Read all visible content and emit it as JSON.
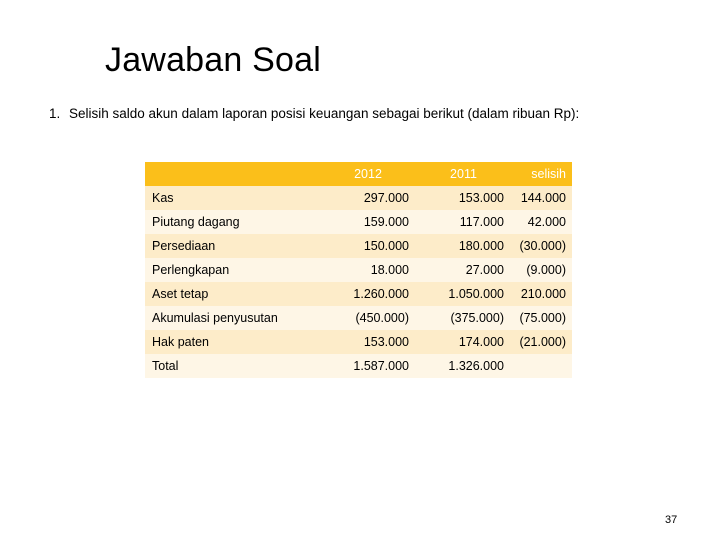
{
  "slide": {
    "title": "Jawaban Soal",
    "intro_number": "1.",
    "intro_text": "Selisih saldo akun dalam laporan posisi keuangan sebagai berikut (dalam ribuan Rp):",
    "page_number": "37"
  },
  "table": {
    "headers": {
      "account": "",
      "y2012": "2012",
      "y2011": "2011",
      "selisih": "selisih"
    },
    "rows": [
      {
        "account": "Kas",
        "y2012": "297.000",
        "y2011": "153.000",
        "selisih": "144.000"
      },
      {
        "account": "Piutang dagang",
        "y2012": "159.000",
        "y2011": "117.000",
        "selisih": "42.000"
      },
      {
        "account": "Persediaan",
        "y2012": "150.000",
        "y2011": "180.000",
        "selisih": "(30.000)"
      },
      {
        "account": "Perlengkapan",
        "y2012": "18.000",
        "y2011": "27.000",
        "selisih": "(9.000)"
      },
      {
        "account": "Aset tetap",
        "y2012": "1.260.000",
        "y2011": "1.050.000",
        "selisih": "210.000"
      },
      {
        "account": "Akumulasi penyusutan",
        "y2012": "(450.000)",
        "y2011": "(375.000)",
        "selisih": "(75.000)"
      },
      {
        "account": "Hak paten",
        "y2012": "153.000",
        "y2011": "174.000",
        "selisih": "(21.000)"
      },
      {
        "account": "Total",
        "y2012": "1.587.000",
        "y2011": "1.326.000",
        "selisih": ""
      }
    ]
  },
  "colors": {
    "header_fill": "#fbbf1a",
    "band_dark": "#fdecc9",
    "band_light": "#fef6e6"
  }
}
